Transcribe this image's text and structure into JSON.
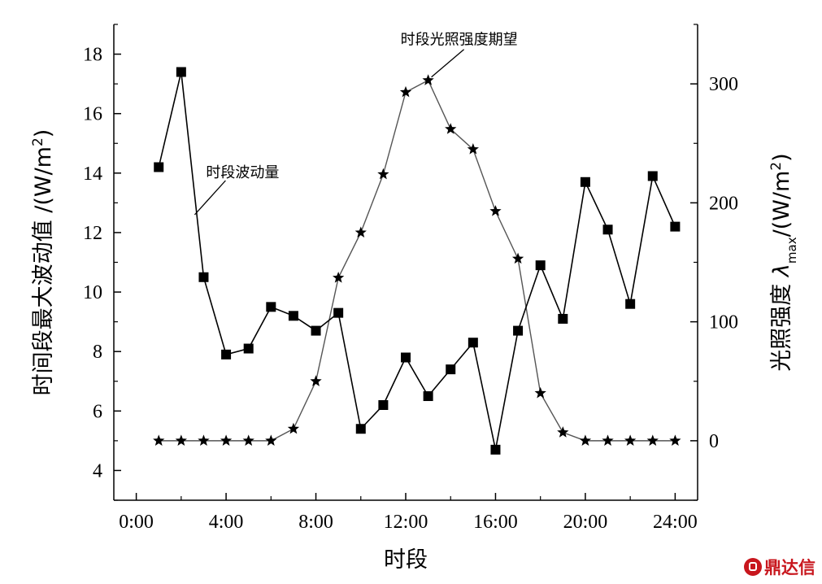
{
  "chart_data": {
    "type": "line",
    "xlabel": "时段",
    "x_ticks": [
      {
        "value": 0,
        "label": "0:00"
      },
      {
        "value": 4,
        "label": "4:00"
      },
      {
        "value": 8,
        "label": "8:00"
      },
      {
        "value": 12,
        "label": "12:00"
      },
      {
        "value": 16,
        "label": "16:00"
      },
      {
        "value": 20,
        "label": "20:00"
      },
      {
        "value": 24,
        "label": "24:00"
      }
    ],
    "xlim": [
      -1,
      25
    ],
    "y_left": {
      "label_prefix": "时间段最大波动值 /(W/m",
      "label_sup": "2",
      "label_suffix": ")",
      "lim": [
        3,
        19
      ],
      "ticks": [
        4,
        6,
        8,
        10,
        12,
        14,
        16,
        18
      ]
    },
    "y_right": {
      "label_prefix": "光照强度 ",
      "label_symbol": "λ",
      "label_sub": "max",
      "label_middle": "/(W/m",
      "label_sup": "2",
      "label_suffix": ")",
      "lim": [
        -50,
        350
      ],
      "ticks": [
        0,
        100,
        200,
        300
      ]
    },
    "series": [
      {
        "axis": "left",
        "marker": "square",
        "color": "#000000",
        "x": [
          1,
          2,
          3,
          4,
          5,
          6,
          7,
          8,
          9,
          10,
          11,
          12,
          13,
          14,
          15,
          16,
          17,
          18,
          19,
          20,
          21,
          22,
          23,
          24
        ],
        "values": [
          14.2,
          17.4,
          10.5,
          7.9,
          8.1,
          9.5,
          9.2,
          8.7,
          9.3,
          5.4,
          6.2,
          7.8,
          6.5,
          7.4,
          8.3,
          4.7,
          8.7,
          10.9,
          9.1,
          13.7,
          12.1,
          9.6,
          13.9,
          12.2
        ]
      },
      {
        "axis": "right",
        "marker": "star",
        "color": "#555555",
        "x": [
          1,
          2,
          3,
          4,
          5,
          6,
          7,
          8,
          9,
          10,
          11,
          12,
          13,
          14,
          15,
          16,
          17,
          18,
          19,
          20,
          21,
          22,
          23,
          24
        ],
        "values": [
          0,
          0,
          0,
          0,
          0,
          0,
          10,
          50,
          137,
          175,
          224,
          293,
          303,
          262,
          245,
          193,
          153,
          40,
          7,
          0,
          0,
          0,
          0,
          0
        ]
      }
    ],
    "annotations": [
      {
        "text": "时段波动量",
        "series_index": 0,
        "x": 2.6,
        "y": 12.6
      },
      {
        "text": "时段光照强度期望",
        "series_index": 1,
        "x": 13.0,
        "y": 303
      }
    ]
  },
  "watermark": {
    "text": "鼎达信"
  }
}
